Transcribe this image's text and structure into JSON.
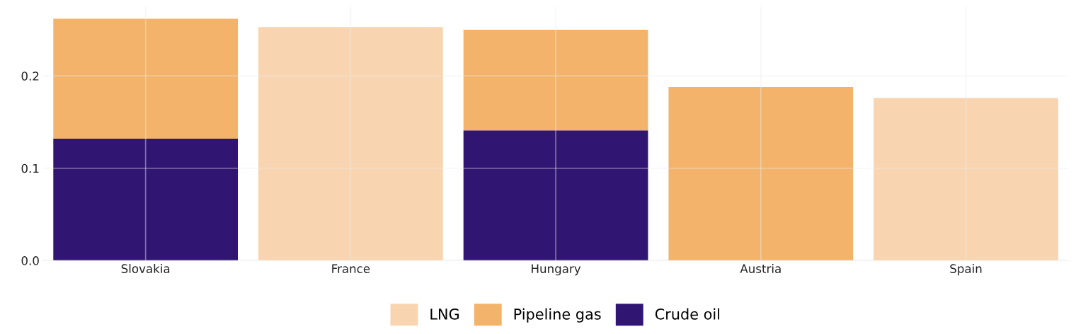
{
  "chart_data": {
    "type": "bar",
    "stacked": true,
    "categories": [
      "Slovakia",
      "France",
      "Hungary",
      "Austria",
      "Spain"
    ],
    "series": [
      {
        "name": "Crude oil",
        "color": "#311573",
        "values": [
          0.132,
          null,
          0.141,
          null,
          null
        ]
      },
      {
        "name": "Pipeline gas",
        "color": "#f4b36b",
        "values": [
          0.13,
          null,
          0.109,
          0.188,
          null
        ]
      },
      {
        "name": "LNG",
        "color": "#f8d5b0",
        "values": [
          null,
          0.253,
          null,
          null,
          0.176
        ]
      }
    ],
    "ylim": [
      0,
      0.275
    ],
    "yticks": [
      {
        "value": 0,
        "label": "0.0"
      },
      {
        "value": 0.1,
        "label": "0.1"
      },
      {
        "value": 0.2,
        "label": "0.2"
      }
    ],
    "grid": true,
    "legend": "bottom"
  }
}
